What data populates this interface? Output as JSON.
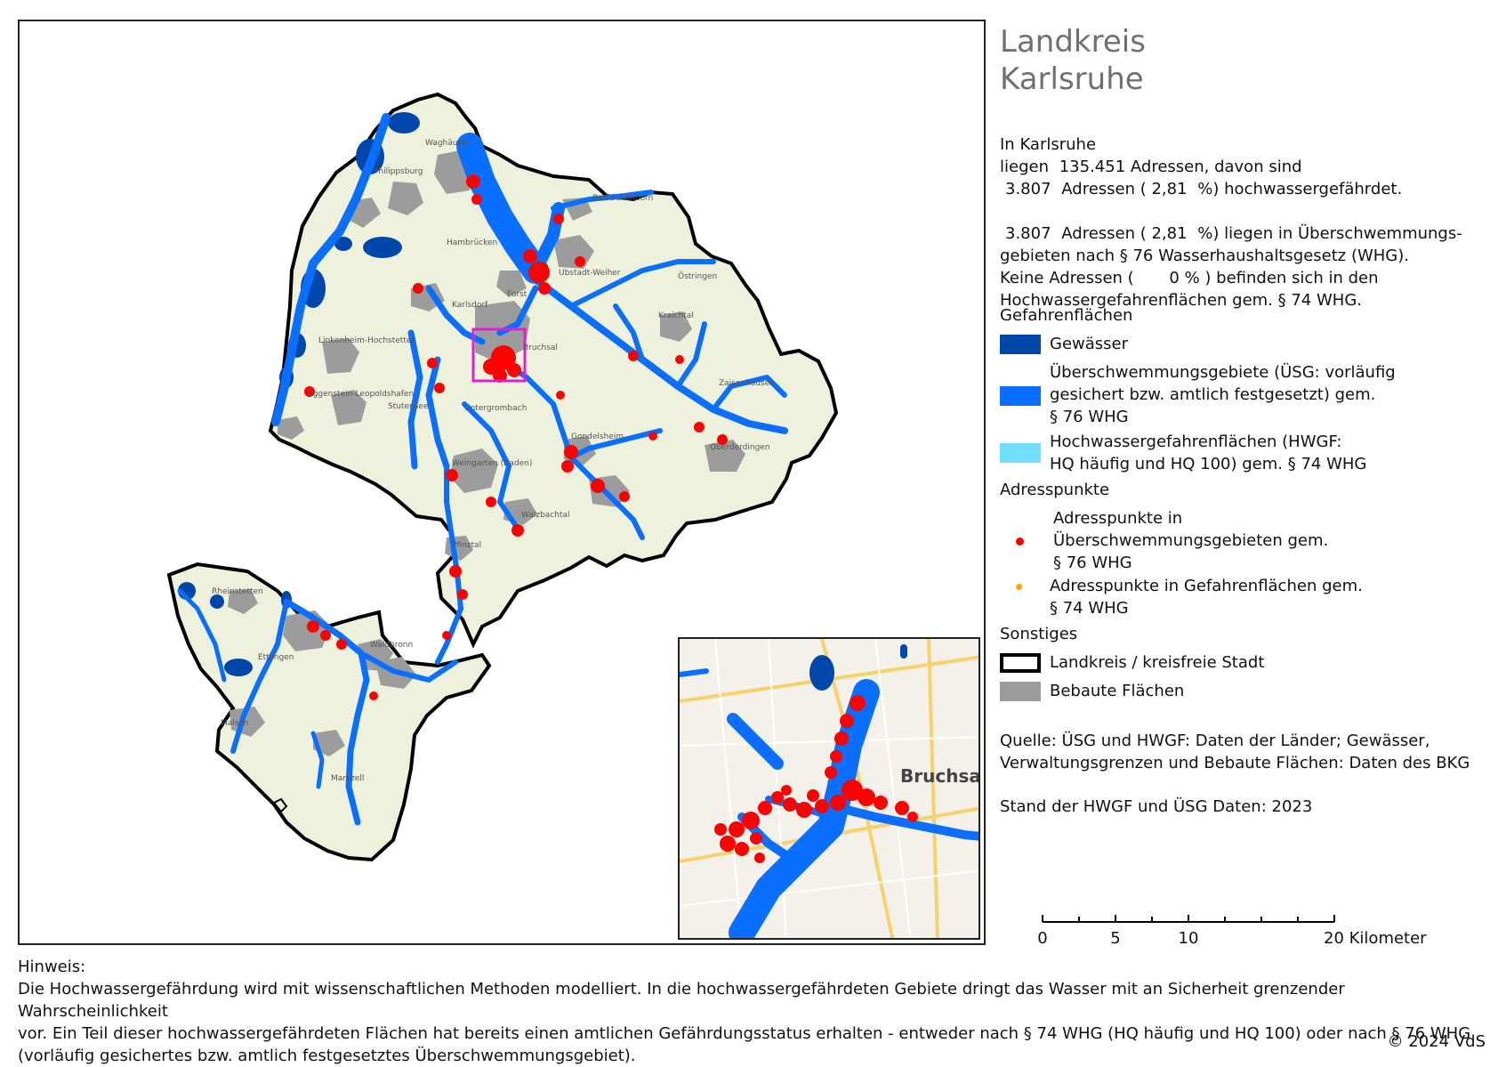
{
  "legend": {
    "title_line1": "Landkreis",
    "title_line2": "Karlsruhe",
    "stats": {
      "line1": "In Karlsruhe",
      "line2_prefix": "liegen",
      "total_addresses": "135.451",
      "line2_suffix": "Adressen, davon sind",
      "endangered_count": "3.807",
      "line3_mid": "Adressen (",
      "endangered_pct": "2,81",
      "line3_suffix": "%) hochwassergefährdet.",
      "usg_count": "3.807",
      "line5_mid": "Adressen (",
      "usg_pct": "2,81",
      "line5_suffix": "%) liegen in Überschwemmungs-",
      "line6": "gebieten nach § 76 Wasserhaushaltsgesetz (WHG).",
      "line7_prefix": "Keine",
      "line7_mid": "Adressen (",
      "hwgf_pct": "0",
      "line7_suffix": "% ) befinden sich in den",
      "line8": "Hochwassergefahrenflächen gem. § 74 WHG."
    },
    "gefahrenflaechen_heading": "Gefahrenflächen",
    "gewaesser_label": "Gewässer",
    "usg_label_1": "Überschwemmungsgebiete (ÜSG: vorläufig",
    "usg_label_2": "gesichert bzw. amtlich festgesetzt) gem.",
    "usg_label_3": "§ 76 WHG",
    "hwgf_label_1": "Hochwassergefahrenflächen (HWGF:",
    "hwgf_label_2": "HQ häufig und HQ 100) gem. § 74 WHG",
    "adresspunkte_heading": "Adresspunkte",
    "ap_usg_1": "Adresspunkte in",
    "ap_usg_2": "Überschwemmungsgebieten gem.",
    "ap_usg_3": "§ 76 WHG",
    "ap_hwgf_1": "Adresspunkte in Gefahrenflächen gem.",
    "ap_hwgf_2": "§ 74 WHG",
    "sonstiges_heading": "Sonstiges",
    "boundary_label": "Landkreis / kreisfreie Stadt",
    "built_label": "Bebaute Flächen",
    "source_1": "Quelle: ÜSG und HWGF: Daten der Länder; Gewässer,",
    "source_2": "Verwaltungsgrenzen und Bebaute Flächen: Daten des BKG",
    "stand": "Stand der HWGF und ÜSG Daten:  2023"
  },
  "colors": {
    "gewaesser": "#0047ab",
    "usg": "#0a6eff",
    "hwgf": "#73dfff",
    "ap_usg": "#ff0000",
    "ap_hwgf": "#ffaa00",
    "built": "#9c9c9c",
    "land": "#eef2dc",
    "inset_frame": "#e020d0"
  },
  "scale": {
    "ticks": [
      "0",
      "5",
      "10",
      "20 Kilometer"
    ]
  },
  "map": {
    "places": [
      "Waghäusel",
      "Philippsburg",
      "Hambrücken",
      "Forst",
      "Bruchsal",
      "Karlsdorf",
      "Kraichtal",
      "Weingarten (Baden)",
      "Walzbachtal",
      "Pfinztal",
      "Gondelsheim",
      "Oberderdingen",
      "Bad Schönborn",
      "Östringen",
      "Linkenheim-Hochstetten",
      "Eggenstein-Leopoldshafen",
      "Stutensee",
      "Ubstadt-Weiher",
      "Rheinstetten",
      "Ettlingen",
      "Waldbronn",
      "Malsch",
      "Marxzell",
      "Untergrombach",
      "Zaisenhausen"
    ],
    "inset_places": [
      "Bruchsal"
    ]
  },
  "hinweis": {
    "heading": "Hinweis:",
    "line1": "Die Hochwassergefährdung wird mit wissenschaftlichen Methoden modelliert. In die hochwassergefährdeten Gebiete dringt das Wasser mit an Sicherheit grenzender Wahrscheinlichkeit",
    "line2": "vor. Ein Teil dieser hochwassergefährdeten Flächen hat bereits einen amtlichen Gefährdungsstatus erhalten - entweder nach § 74 WHG (HQ häufig und HQ 100) oder nach § 76 WHG",
    "line3": "(vorläufig gesichertes bzw. amtlich festgesetztes Überschwemmungsgebiet)."
  },
  "copyright": "© 2024 VdS"
}
